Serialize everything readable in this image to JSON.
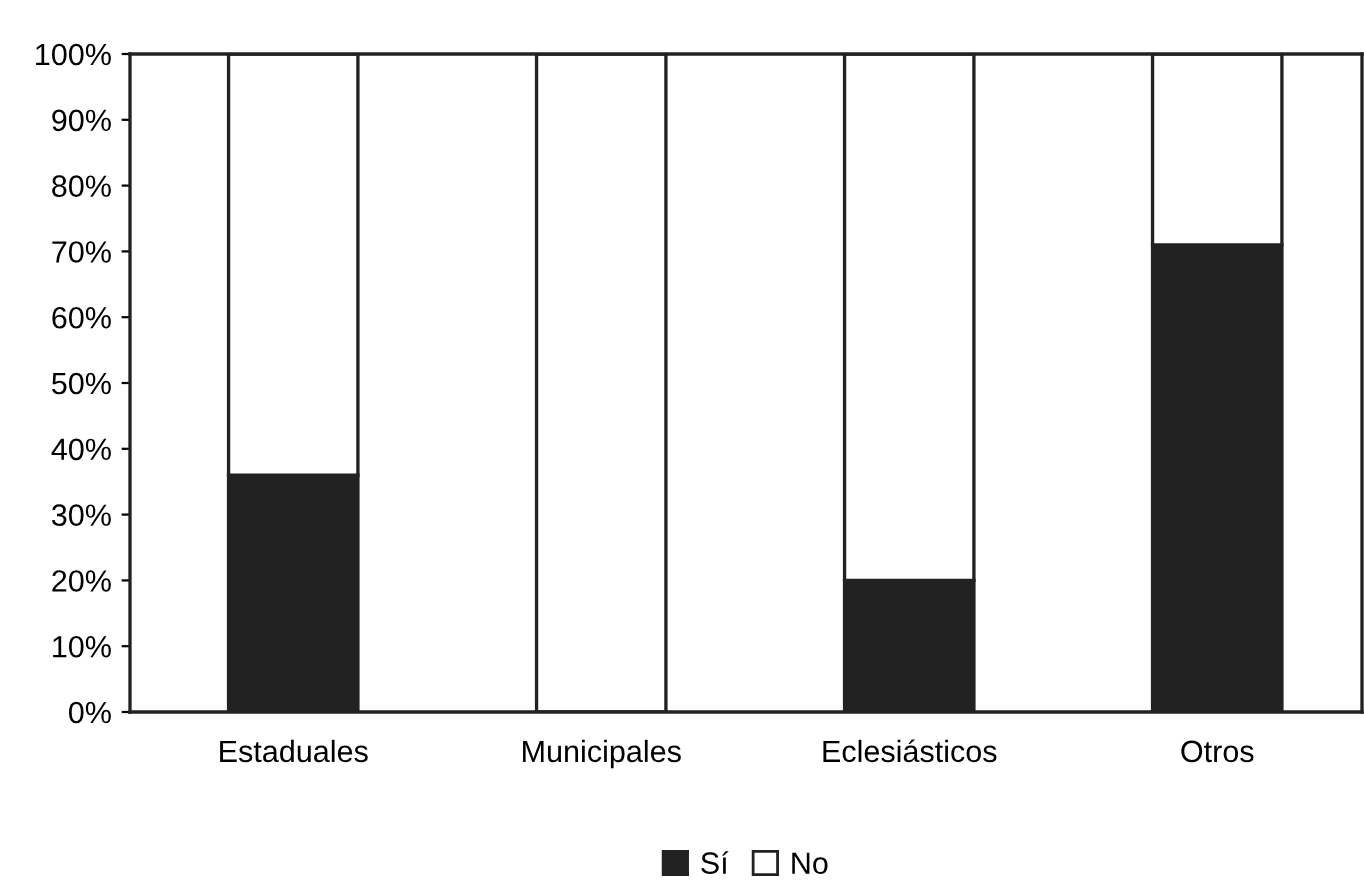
{
  "chart_data": {
    "type": "bar",
    "stacked": true,
    "categories": [
      "Estaduales",
      "Municipales",
      "Eclesiásticos",
      "Otros"
    ],
    "series": [
      {
        "name": "Sí",
        "color": "#222222",
        "values": [
          36,
          0,
          20,
          71
        ]
      },
      {
        "name": "No",
        "color": "#ffffff",
        "values": [
          64,
          100,
          80,
          29
        ]
      }
    ],
    "ylim": [
      0,
      100
    ],
    "yticks": [
      {
        "value": 0,
        "label": "0%"
      },
      {
        "value": 10,
        "label": "10%"
      },
      {
        "value": 20,
        "label": "20%"
      },
      {
        "value": 30,
        "label": "30%"
      },
      {
        "value": 40,
        "label": "40%"
      },
      {
        "value": 50,
        "label": "50%"
      },
      {
        "value": 60,
        "label": "60%"
      },
      {
        "value": 70,
        "label": "70%"
      },
      {
        "value": 80,
        "label": "80%"
      },
      {
        "value": 90,
        "label": "90%"
      },
      {
        "value": 100,
        "label": "100%"
      }
    ],
    "grid": false,
    "legend": "bottom"
  }
}
